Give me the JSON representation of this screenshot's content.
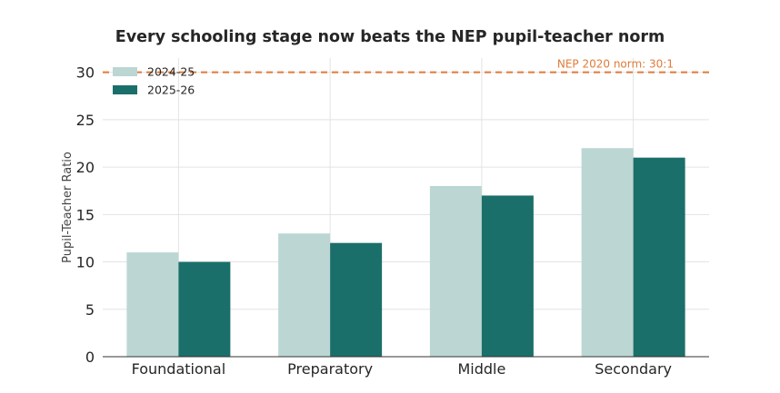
{
  "chart_data": {
    "type": "bar",
    "title": "Every schooling stage now beats the NEP pupil-teacher norm",
    "xlabel": "",
    "ylabel": "Pupil-Teacher Ratio",
    "categories": [
      "Foundational",
      "Preparatory",
      "Middle",
      "Secondary"
    ],
    "series": [
      {
        "name": "2024-25",
        "values": [
          11,
          13,
          18,
          22
        ],
        "color": "#bcd6d3"
      },
      {
        "name": "2025-26",
        "values": [
          10,
          12,
          17,
          21
        ],
        "color": "#1b6f6a"
      }
    ],
    "ylim": [
      0,
      31.5
    ],
    "yticks": [
      0,
      5,
      10,
      15,
      20,
      25,
      30
    ],
    "grid": true,
    "legend_position": "top-left",
    "reference_line": {
      "value": 30,
      "label": "NEP 2020 norm: 30:1",
      "color": "#e07b39",
      "style": "dashed"
    }
  }
}
